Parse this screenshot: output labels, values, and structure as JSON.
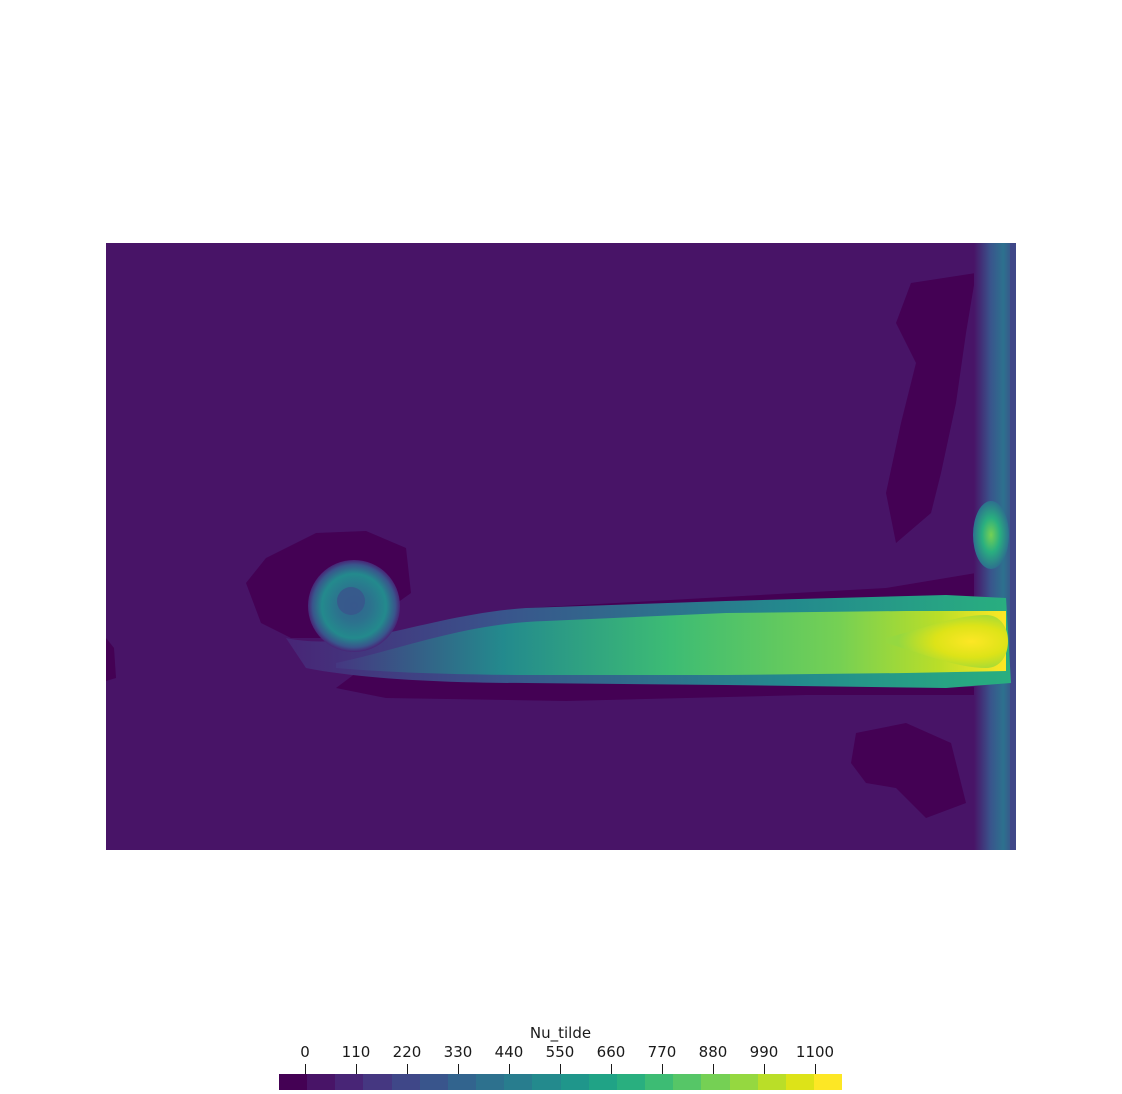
{
  "colorbar": {
    "title": "Nu_tilde",
    "ticks": [
      "0",
      "110",
      "220",
      "330",
      "440",
      "550",
      "660",
      "770",
      "880",
      "990",
      "1100"
    ],
    "colors": [
      "#440154",
      "#481467",
      "#482576",
      "#453781",
      "#3f4788",
      "#39558c",
      "#32648e",
      "#2d718e",
      "#287d8e",
      "#238a8d",
      "#1f968b",
      "#20a386",
      "#29af7f",
      "#3dbc74",
      "#56c667",
      "#75d054",
      "#95d840",
      "#bade28",
      "#dde318",
      "#fde725"
    ]
  },
  "field": {
    "background_color": "#481467",
    "low_color": "#440154",
    "wake_colors": [
      "#482576",
      "#39558c",
      "#238a8d",
      "#3dbc74",
      "#95d840",
      "#fde725"
    ]
  }
}
